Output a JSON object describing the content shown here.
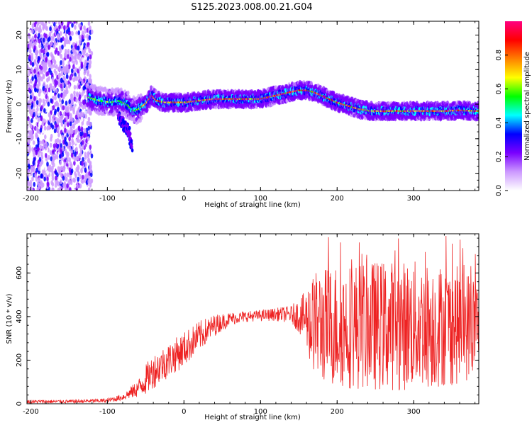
{
  "title": "S125.2023.008.00.21.G04",
  "chart_data": [
    {
      "type": "heatmap",
      "xlabel": "Height of straight line (km)",
      "ylabel": "Frequency (Hz)",
      "xlim": [
        -205,
        385
      ],
      "ylim": [
        -25,
        24
      ],
      "xticks": [
        -200,
        -100,
        0,
        100,
        200,
        300
      ],
      "yticks": [
        -20,
        -10,
        0,
        10,
        20
      ],
      "colorbar": {
        "label": "Normalized spectral amplitude",
        "range": [
          0,
          1
        ],
        "ticks": [
          0.0,
          0.2,
          0.4,
          0.6,
          0.8
        ],
        "colormap": [
          "#ffffff",
          "#cc99ff",
          "#7a00ff",
          "#0000ff",
          "#00ffff",
          "#00ff00",
          "#ffff00",
          "#ff8000",
          "#ff0000",
          "#ff0080"
        ]
      },
      "ridge": {
        "x": [
          -125,
          -110,
          -95,
          -85,
          -75,
          -65,
          -60,
          -50,
          -42,
          -35,
          -25,
          -10,
          0,
          20,
          40,
          60,
          80,
          100,
          110,
          120,
          130,
          140,
          150,
          160,
          170,
          180,
          190,
          200,
          215,
          230,
          245,
          260,
          280,
          300,
          320,
          340,
          360,
          385
        ],
        "y": [
          2,
          1,
          0.5,
          1,
          0,
          -2,
          -1.5,
          0,
          2.5,
          1,
          0.5,
          0.5,
          0.5,
          1,
          1.5,
          1.5,
          1.5,
          1.5,
          2,
          2.5,
          3,
          3.5,
          4,
          4,
          3.5,
          2.5,
          1.5,
          0.5,
          -0.5,
          -1.5,
          -2,
          -2,
          -2,
          -2,
          -2,
          -2,
          -1.8,
          -2
        ]
      },
      "noise_region_x": [
        -205,
        -120
      ],
      "spur": {
        "x": [
          -85,
          -72,
          -68
        ],
        "y": [
          -4,
          -8,
          -12
        ]
      }
    },
    {
      "type": "line",
      "xlabel": "Height of straight line (km)",
      "ylabel": "SNR (10 * v/v)",
      "xlim": [
        -205,
        385
      ],
      "ylim": [
        0,
        780
      ],
      "xticks": [
        -200,
        -100,
        0,
        100,
        200,
        300
      ],
      "yticks": [
        0,
        200,
        400,
        600
      ],
      "color": "#ee2222",
      "envelope": {
        "x": [
          -205,
          -150,
          -100,
          -80,
          -60,
          -50,
          -40,
          -20,
          0,
          20,
          40,
          60,
          80,
          100,
          120,
          140,
          155,
          165,
          175,
          200,
          250,
          300,
          350,
          385
        ],
        "mean": [
          10,
          10,
          15,
          30,
          70,
          110,
          150,
          200,
          250,
          310,
          360,
          390,
          400,
          405,
          410,
          410,
          400,
          380,
          360,
          360,
          360,
          360,
          360,
          360
        ],
        "spread": [
          8,
          8,
          10,
          15,
          40,
          70,
          80,
          80,
          80,
          70,
          50,
          30,
          25,
          25,
          30,
          40,
          100,
          200,
          260,
          290,
          300,
          300,
          280,
          240
        ]
      }
    }
  ]
}
